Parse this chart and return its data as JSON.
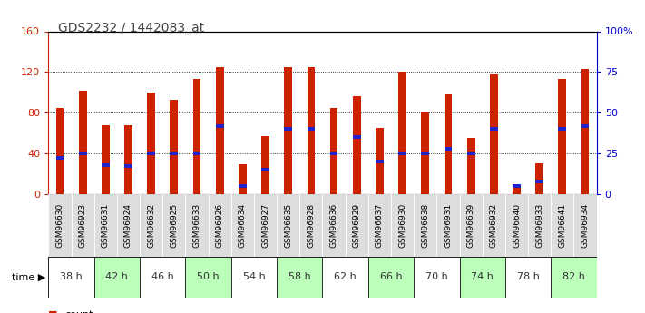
{
  "title": "GDS2232 / 1442083_at",
  "samples": [
    "GSM96630",
    "GSM96923",
    "GSM96631",
    "GSM96924",
    "GSM96632",
    "GSM96925",
    "GSM96633",
    "GSM96926",
    "GSM96634",
    "GSM96927",
    "GSM96635",
    "GSM96928",
    "GSM96636",
    "GSM96929",
    "GSM96637",
    "GSM96930",
    "GSM96638",
    "GSM96931",
    "GSM96639",
    "GSM96932",
    "GSM96640",
    "GSM96933",
    "GSM96641",
    "GSM96934"
  ],
  "time_groups": [
    {
      "label": "38 h",
      "start": 0,
      "end": 2
    },
    {
      "label": "42 h",
      "start": 2,
      "end": 4
    },
    {
      "label": "46 h",
      "start": 4,
      "end": 6
    },
    {
      "label": "50 h",
      "start": 6,
      "end": 8
    },
    {
      "label": "54 h",
      "start": 8,
      "end": 10
    },
    {
      "label": "58 h",
      "start": 10,
      "end": 12
    },
    {
      "label": "62 h",
      "start": 12,
      "end": 14
    },
    {
      "label": "66 h",
      "start": 14,
      "end": 16
    },
    {
      "label": "70 h",
      "start": 16,
      "end": 18
    },
    {
      "label": "74 h",
      "start": 18,
      "end": 20
    },
    {
      "label": "78 h",
      "start": 20,
      "end": 22
    },
    {
      "label": "82 h",
      "start": 22,
      "end": 24
    }
  ],
  "count_values": [
    85,
    102,
    68,
    68,
    100,
    93,
    113,
    125,
    29,
    57,
    125,
    125,
    85,
    96,
    65,
    120,
    80,
    98,
    55,
    118,
    10,
    30,
    113,
    123
  ],
  "percentile_values": [
    22,
    25,
    18,
    17,
    25,
    25,
    25,
    42,
    5,
    15,
    40,
    40,
    25,
    35,
    20,
    25,
    25,
    28,
    25,
    40,
    5,
    8,
    40,
    42
  ],
  "ylim_left": [
    0,
    160
  ],
  "ylim_right": [
    0,
    100
  ],
  "yticks_left": [
    0,
    40,
    80,
    120,
    160
  ],
  "ytick_labels_right": [
    "0",
    "25",
    "50",
    "75",
    "100%"
  ],
  "bar_color": "#cc2200",
  "percentile_color": "#2222cc",
  "bg_color": "#ffffff",
  "left_axis_color": "#cc2200",
  "right_axis_color": "#0000cc",
  "group_colors": [
    "#ffffff",
    "#bbffbb"
  ],
  "sample_row_color": "#dddddd",
  "bar_width": 0.35
}
